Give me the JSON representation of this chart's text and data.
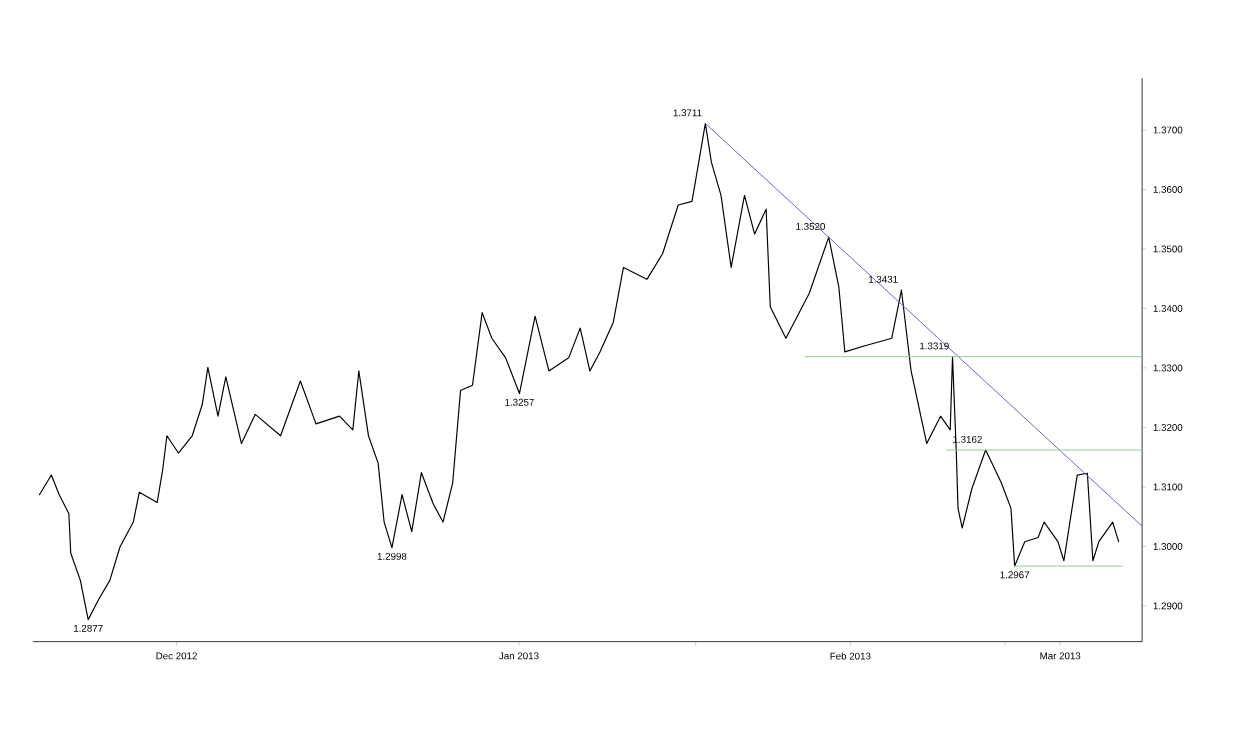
{
  "chart_data": {
    "type": "line",
    "xlim": [
      "2012-12-03T00:00",
      "2013-03-13T10:00"
    ],
    "xticks": [
      {
        "value": "2012-12-16T00:00",
        "label": "Dec 2012"
      },
      {
        "value": "2013-01-16T00:00",
        "label": "Jan 2013"
      },
      {
        "value": "2013-02-01T00:00",
        "label": null
      },
      {
        "value": "2013-02-15T00:00",
        "label": "Feb 2013"
      },
      {
        "value": "2013-03-01T00:00",
        "label": null
      },
      {
        "value": "2013-03-06T00:00",
        "label": "Mar 2013"
      }
    ],
    "ylim": [
      1.284,
      1.3787
    ],
    "yticks": [
      {
        "value": 1.29,
        "label": "1.2900"
      },
      {
        "value": 1.3,
        "label": "1.3000"
      },
      {
        "value": 1.31,
        "label": "1.3100"
      },
      {
        "value": 1.32,
        "label": "1.3200"
      },
      {
        "value": 1.33,
        "label": "1.3300"
      },
      {
        "value": 1.34,
        "label": "1.3400"
      },
      {
        "value": 1.35,
        "label": "1.3500"
      },
      {
        "value": 1.36,
        "label": "1.3600"
      },
      {
        "value": 1.37,
        "label": "1.3700"
      }
    ],
    "grid": false,
    "marker": "none",
    "series": [
      {
        "color": "#000000",
        "x": [
          "2012-12-03T14:00",
          "2012-12-04T16:00",
          "2012-12-05T09:00",
          "2012-12-06T06:00",
          "2012-12-06T10:00",
          "2012-12-07T07:00",
          "2012-12-08T00:00",
          "2012-12-08T22:00",
          "2012-12-09T23:00",
          "2012-12-10T21:00",
          "2012-12-12T02:00",
          "2012-12-12T15:00",
          "2012-12-14T06:00",
          "2012-12-14T18:00",
          "2012-12-15T03:00",
          "2012-12-16T04:00",
          "2012-12-17T10:00",
          "2012-12-18T08:00",
          "2012-12-18T20:00",
          "2012-12-19T18:00",
          "2012-12-20T11:00",
          "2012-12-21T21:00",
          "2012-12-23T03:00",
          "2012-12-25T10:00",
          "2012-12-27T05:00",
          "2012-12-28T15:00",
          "2012-12-30T18:00",
          "2012-12-31T23:00",
          "2013-01-01T12:00",
          "2013-01-02T09:00",
          "2013-01-03T06:00",
          "2013-01-03T19:00",
          "2013-01-04T12:00",
          "2013-01-05T10:00",
          "2013-01-06T07:00",
          "2013-01-07T04:00",
          "2013-01-08T06:00",
          "2013-01-09T03:00",
          "2013-01-10T00:00",
          "2013-01-10T17:00",
          "2013-01-11T19:00",
          "2013-01-12T16:00",
          "2013-01-13T13:00",
          "2013-01-14T19:00",
          "2013-01-16T01:00",
          "2013-01-17T11:00",
          "2013-01-18T17:00",
          "2013-01-20T12:00",
          "2013-01-21T13:00",
          "2013-01-22T10:00",
          "2013-01-23T08:00",
          "2013-01-24T13:00",
          "2013-01-25T11:00",
          "2013-01-27T14:00",
          "2013-01-29T00:00",
          "2013-01-30T10:00",
          "2013-01-31T16:00",
          "2013-02-01T21:00",
          "2013-02-02T10:00",
          "2013-02-03T07:00",
          "2013-02-04T05:00",
          "2013-02-05T10:00",
          "2013-02-06T08:00",
          "2013-02-07T09:00",
          "2013-02-07T18:00",
          "2013-02-09T04:00",
          "2013-02-11T07:00",
          "2013-02-13T01:00",
          "2013-02-13T23:00",
          "2013-02-14T12:00",
          "2013-02-16T06:00",
          "2013-02-18T18:00",
          "2013-02-19T15:00",
          "2013-02-20T12:00",
          "2013-02-21T22:00",
          "2013-02-23T04:00",
          "2013-02-24T01:00",
          "2013-02-24T06:00",
          "2013-02-24T14:00",
          "2013-02-24T18:00",
          "2013-02-25T03:00",
          "2013-02-26T00:00",
          "2013-02-27T06:00",
          "2013-02-28T16:00",
          "2013-03-01T13:00",
          "2013-03-01T21:00",
          "2013-03-02T19:00",
          "2013-03-04T00:00",
          "2013-03-04T13:00",
          "2013-03-05T19:00",
          "2013-03-06T08:00",
          "2013-03-07T13:00",
          "2013-03-08T11:00",
          "2013-03-08T23:00",
          "2013-03-09T12:00",
          "2013-03-10T18:00",
          "2013-03-11T07:00"
        ],
        "values": [
          1.3087,
          1.312,
          1.3087,
          1.3055,
          1.2989,
          1.2943,
          1.2877,
          1.291,
          1.2943,
          1.2999,
          1.3041,
          1.3091,
          1.3074,
          1.313,
          1.3186,
          1.3157,
          1.3186,
          1.3239,
          1.3301,
          1.3219,
          1.3285,
          1.3173,
          1.3222,
          1.3186,
          1.3278,
          1.3206,
          1.3219,
          1.3196,
          1.3295,
          1.3186,
          1.314,
          1.3041,
          1.2998,
          1.3087,
          1.3025,
          1.3124,
          1.3071,
          1.3041,
          1.3107,
          1.3262,
          1.3271,
          1.3393,
          1.335,
          1.3317,
          1.3257,
          1.3387,
          1.3295,
          1.3317,
          1.3367,
          1.3295,
          1.3327,
          1.3377,
          1.3469,
          1.3449,
          1.3492,
          1.3574,
          1.358,
          1.3711,
          1.3646,
          1.359,
          1.3469,
          1.359,
          1.3525,
          1.3567,
          1.3403,
          1.335,
          1.3426,
          1.352,
          1.3436,
          1.3327,
          1.3337,
          1.335,
          1.3431,
          1.3295,
          1.3173,
          1.3219,
          1.3196,
          1.3319,
          1.3163,
          1.3064,
          1.3031,
          1.3097,
          1.3162,
          1.3107,
          1.3064,
          1.2967,
          1.3008,
          1.3015,
          1.3041,
          1.3008,
          1.2976,
          1.312,
          1.3123,
          1.2976,
          1.3008,
          1.3041,
          1.3008
        ]
      },
      {
        "color": "#5a6bc8",
        "x": [
          "2013-02-01T21:00",
          "2013-03-13T10:00"
        ],
        "values": [
          1.3711,
          1.3034
        ]
      },
      {
        "color": "#90cc90",
        "x": [
          "2013-02-10T22:00",
          "2013-03-13T10:00"
        ],
        "values": [
          1.3319,
          1.3319
        ]
      },
      {
        "color": "#90cc90",
        "x": [
          "2013-02-23T17:00",
          "2013-03-13T10:00"
        ],
        "values": [
          1.3162,
          1.3162
        ]
      },
      {
        "color": "#90cc90",
        "x": [
          "2013-03-01T21:00",
          "2013-03-11T15:00"
        ],
        "values": [
          1.2967,
          1.2967
        ]
      }
    ],
    "annotations": [
      {
        "text": "1.2877",
        "x": "2012-12-08T00:00",
        "y": 1.2877
      },
      {
        "text": "1.2998",
        "x": "2013-01-04T12:00",
        "y": 1.2998
      },
      {
        "text": "1.3257",
        "x": "2013-01-16T01:00",
        "y": 1.3257
      },
      {
        "text": "1.3711",
        "x": "2013-02-01T21:00",
        "y": 1.3711
      },
      {
        "text": "1.3520",
        "x": "2013-02-13T01:00",
        "y": 1.352
      },
      {
        "text": "1.3431",
        "x": "2013-02-19T15:00",
        "y": 1.3431
      },
      {
        "text": "1.3319",
        "x": "2013-02-24T06:00",
        "y": 1.3319
      },
      {
        "text": "1.3162",
        "x": "2013-02-27T06:00",
        "y": 1.3162
      },
      {
        "text": "1.2967",
        "x": "2013-03-01T21:00",
        "y": 1.2967
      }
    ]
  }
}
